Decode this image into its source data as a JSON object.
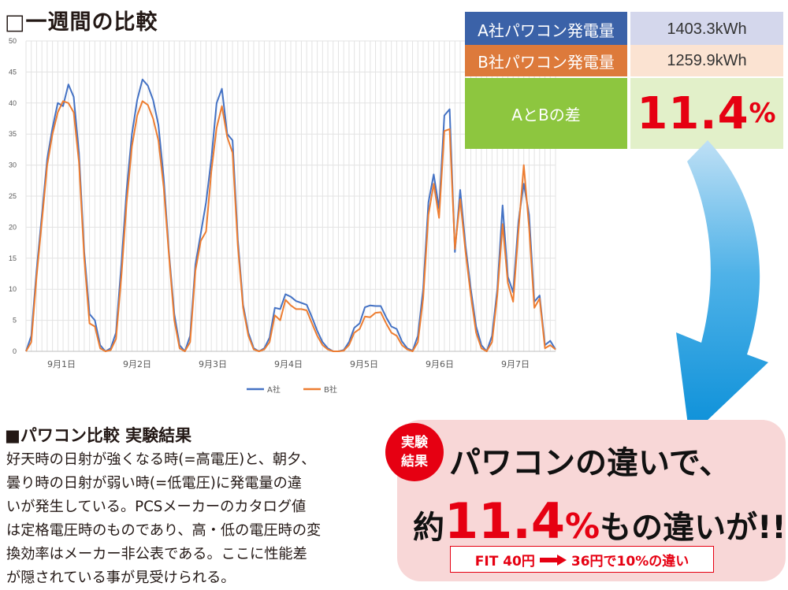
{
  "page_title": "□一週間の比較",
  "comparison_table": {
    "rows": [
      {
        "label": "A社パワコン発電量",
        "value": "1403.3kWh",
        "label_color": "#3b62a8",
        "value_color": "#d4d7ec"
      },
      {
        "label": "B社パワコン発電量",
        "value": "1259.9kWh",
        "label_color": "#dd7a3b",
        "value_color": "#fbe3d2"
      }
    ],
    "diff_label": "AとBの差",
    "diff_value": "11.4",
    "diff_unit": "%",
    "diff_label_color": "#8dc63f",
    "diff_value_color": "#e2f0c9"
  },
  "section_title": "■パワコン比較 実験結果",
  "body_lines": [
    "好天時の日射が強くなる時(=高電圧)と、朝夕、",
    "曇り時の日射が弱い時(=低電圧)に発電量の違",
    "いが発生している。PCSメーカーのカタログ値",
    "は定格電圧時のものであり、高・低の電圧時の変",
    "換効率はメーカー非公表である。ここに性能差",
    "が隠されている事が見受けられる。"
  ],
  "result": {
    "badge_line1": "実験",
    "badge_line2": "結果",
    "line1": "パワコンの違いで、",
    "line2_prefix": "約",
    "line2_number": "11.4",
    "line2_unit": "%",
    "line2_suffix": "もの違いが!!",
    "fit_left": "FIT 40円",
    "fit_right": "36円で10%の違い"
  },
  "chart_data": {
    "type": "line",
    "x_tick_labels": [
      "9月1日",
      "9月2日",
      "9月3日",
      "9月4日",
      "9月5日",
      "9月6日",
      "9月7日"
    ],
    "ylim": [
      0,
      50
    ],
    "y_ticks": [
      0,
      5,
      10,
      15,
      20,
      25,
      30,
      35,
      40,
      45,
      50
    ],
    "grid": true,
    "legend_position": "bottom",
    "series": [
      {
        "name": "A社",
        "color": "#4472c4",
        "values": [
          0,
          2.5,
          13,
          22,
          31,
          36,
          40,
          39.5,
          43,
          41,
          32,
          16,
          6,
          5,
          1,
          0,
          0.5,
          3,
          14,
          26,
          35,
          40.5,
          43.8,
          42.8,
          40.5,
          36.5,
          28,
          16,
          6,
          1,
          0,
          2.5,
          14,
          19,
          24,
          31,
          40,
          42.3,
          35,
          34,
          18,
          7.5,
          3,
          0.5,
          0,
          0.5,
          2.2,
          7,
          6.8,
          9.2,
          8.8,
          8.1,
          7.8,
          7.5,
          5.5,
          3.3,
          1.5,
          0.5,
          0,
          0,
          0.2,
          1.5,
          3.8,
          4.5,
          7.1,
          7.4,
          7.3,
          7.3,
          5.5,
          4,
          3.6,
          1.6,
          0.5,
          0.1,
          2.5,
          10,
          24,
          28.5,
          23,
          38,
          39,
          16,
          26,
          17,
          10,
          4,
          1,
          0,
          2.5,
          10,
          23.5,
          12,
          9.5,
          21,
          27,
          22,
          8,
          9,
          1,
          1.7,
          0.3
        ]
      },
      {
        "name": "B社",
        "color": "#ed7d31",
        "values": [
          0,
          1.5,
          12,
          21,
          30,
          35,
          38.5,
          40.3,
          40,
          38.5,
          30.5,
          15,
          4.5,
          4,
          0.5,
          0,
          0.2,
          2,
          12,
          24,
          33,
          38,
          40.3,
          39.7,
          37.5,
          34,
          26.5,
          15.5,
          5,
          0.5,
          0,
          1.5,
          13,
          17.8,
          19.3,
          29,
          36,
          39.5,
          34.5,
          32,
          17,
          7,
          2.5,
          0.3,
          0,
          0.3,
          1.5,
          5.8,
          5,
          8.3,
          7.4,
          6.8,
          6.8,
          6.6,
          4.5,
          2.5,
          1,
          0.3,
          0,
          0,
          0.1,
          1,
          3,
          3.6,
          5.6,
          5.5,
          6.2,
          6.3,
          4.5,
          3,
          2.5,
          1,
          0.3,
          0,
          1.5,
          8.5,
          22,
          27,
          21.5,
          35.5,
          35.8,
          16.5,
          24.5,
          16,
          9,
          3,
          0.5,
          0,
          1.5,
          9,
          20.5,
          11,
          8,
          19.5,
          30,
          20,
          7,
          8.5,
          0.5,
          1,
          0.3
        ]
      }
    ]
  }
}
